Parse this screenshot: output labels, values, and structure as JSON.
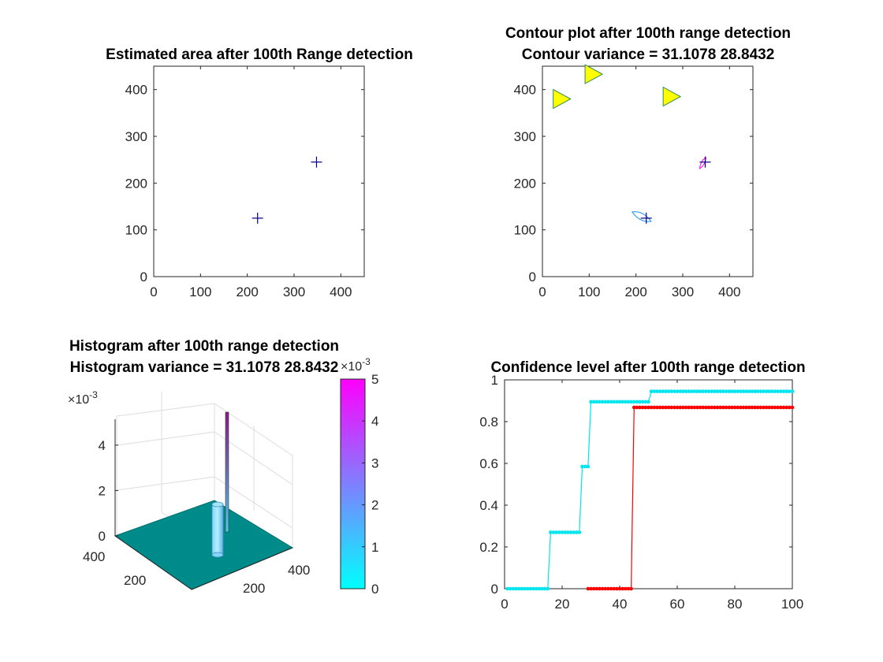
{
  "figure": {
    "panel1": {
      "title": "Estimated area after 100th  Range detection",
      "xticks": [
        "0",
        "100",
        "200",
        "300",
        "400"
      ],
      "yticks": [
        "0",
        "100",
        "200",
        "300",
        "400"
      ]
    },
    "panel2": {
      "title_line1": "Contour plot after 100th  range detection",
      "title_line2": "Contour variance = 31.1078       28.8432",
      "xticks": [
        "0",
        "100",
        "200",
        "300",
        "400"
      ],
      "yticks": [
        "0",
        "100",
        "200",
        "300",
        "400"
      ]
    },
    "panel3": {
      "title_line1": "Histogram after 100th  range detection",
      "title_line2": "Histogram variance = 31.1078       28.8432",
      "zticks": [
        "0",
        "2",
        "4"
      ],
      "z_exponent": "×10",
      "z_exponent_power": "-3",
      "xticks": [
        "200",
        "400"
      ],
      "yticks": [
        "200",
        "400"
      ],
      "colorbar_ticks": [
        "0",
        "1",
        "2",
        "3",
        "4",
        "5"
      ],
      "colorbar_exponent": "×10",
      "colorbar_exponent_power": "-3"
    },
    "panel4": {
      "title": "Confidence level after 100th  range detection",
      "xticks": [
        "0",
        "20",
        "40",
        "60",
        "80",
        "100"
      ],
      "yticks": [
        "0",
        "0.2",
        "0.4",
        "0.6",
        "0.8",
        "1"
      ]
    }
  },
  "chart_data": [
    {
      "type": "scatter",
      "title": "Estimated area after 100th  Range detection",
      "xlim": [
        0,
        450
      ],
      "ylim": [
        0,
        450
      ],
      "marker": "+",
      "color": "#00008b",
      "points": [
        [
          222,
          125
        ],
        [
          348,
          245
        ]
      ]
    },
    {
      "type": "scatter",
      "title": "Contour plot after 100th  range detection / Contour variance = 31.1078       28.8432",
      "xlim": [
        0,
        450
      ],
      "ylim": [
        0,
        450
      ],
      "anchors": {
        "marker": "triangle-right",
        "fill": "#ffff00",
        "edge": "#2e8b57",
        "points": [
          [
            40,
            380
          ],
          [
            108,
            433
          ],
          [
            275,
            385
          ]
        ]
      },
      "estimates": {
        "marker": "+",
        "color": "#00008b",
        "points": [
          [
            222,
            125
          ],
          [
            348,
            245
          ]
        ]
      },
      "contours": [
        {
          "center": [
            212,
            125
          ],
          "color": "#1e90ff"
        },
        {
          "center": [
            343,
            243
          ],
          "color": "#ff00ff"
        }
      ]
    },
    {
      "type": "surface3d",
      "title": "Histogram after 100th  range detection / Histogram variance = 31.1078       28.8432",
      "xlim": [
        0,
        450
      ],
      "ylim": [
        0,
        450
      ],
      "zlim": [
        0,
        0.005
      ],
      "floor_color": "#008b8b",
      "colormap": [
        "#00ffff",
        "#ff00ff"
      ],
      "peaks": [
        {
          "x": 222,
          "y": 125,
          "z": 0.0013
        },
        {
          "x": 348,
          "y": 245,
          "z": 0.0048
        }
      ]
    },
    {
      "type": "line",
      "title": "Confidence level after 100th  range detection",
      "xlim": [
        0,
        100
      ],
      "ylim": [
        0,
        1
      ],
      "series": [
        {
          "color": "#00e5ee",
          "steps": [
            [
              1,
              0
            ],
            [
              15,
              0
            ],
            [
              16,
              0.27
            ],
            [
              26,
              0.27
            ],
            [
              27,
              0.585
            ],
            [
              29,
              0.585
            ],
            [
              30,
              0.895
            ],
            [
              50,
              0.895
            ],
            [
              51,
              0.945
            ],
            [
              100,
              0.945
            ]
          ]
        },
        {
          "color": "#ff0000",
          "steps": [
            [
              29,
              0
            ],
            [
              44,
              0
            ],
            [
              45,
              0.868
            ],
            [
              100,
              0.868
            ]
          ]
        }
      ]
    }
  ]
}
